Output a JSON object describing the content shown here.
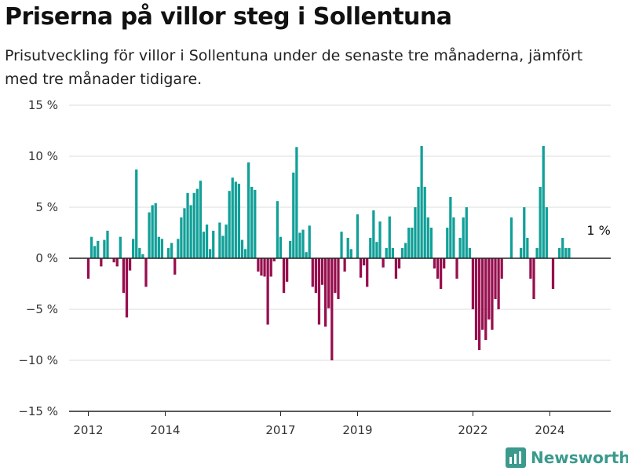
{
  "title": "Priserna på villor steg i Sollentuna",
  "subtitle": "Prisutveckling för villor i Sollentuna under de senaste tre månaderna, jämfört med tre månader tidigare.",
  "brand": {
    "name": "Newsworthy",
    "icon": "bar-chart-logo-icon"
  },
  "colors": {
    "positive": "#11a098",
    "negative": "#970f4e",
    "grid": "#dddddd",
    "zero_line": "#222222",
    "brand": "#3a9a8c"
  },
  "chart_data": {
    "type": "bar",
    "title": "Priserna på villor steg i Sollentuna",
    "xlabel": "",
    "ylabel": "",
    "ylim": [
      -15,
      15
    ],
    "y_ticks": [
      {
        "value": 15,
        "label": "15 %"
      },
      {
        "value": 10,
        "label": "10 %"
      },
      {
        "value": 5,
        "label": "5 %"
      },
      {
        "value": 0,
        "label": "0 %"
      },
      {
        "value": -5,
        "label": "−5 %"
      },
      {
        "value": -10,
        "label": "−10 %"
      },
      {
        "value": -15,
        "label": "−15 %"
      }
    ],
    "x_range": [
      "2011-07",
      "2025-08"
    ],
    "x_ticks": [
      {
        "value": "2012-01",
        "label": "2012"
      },
      {
        "value": "2014-01",
        "label": "2014"
      },
      {
        "value": "2017-01",
        "label": "2017"
      },
      {
        "value": "2019-01",
        "label": "2019"
      },
      {
        "value": "2022-01",
        "label": "2022"
      },
      {
        "value": "2024-01",
        "label": "2024"
      }
    ],
    "annotation": {
      "text": "1 %",
      "x": "2025-03"
    },
    "series": [
      {
        "start": "2012-01",
        "frequency": "monthly",
        "values": [
          -2.0,
          2.1,
          1.2,
          1.7,
          -0.8,
          1.8,
          2.7,
          0,
          -0.4,
          -0.8,
          2.1,
          -3.4,
          -5.8,
          -1.2,
          1.9,
          8.7,
          1.0,
          0.4,
          -2.8,
          4.5,
          5.2,
          5.4,
          2.1,
          1.9,
          0,
          1.0,
          1.5,
          -1.6,
          1.9,
          4.0,
          4.9,
          6.4,
          5.2,
          6.4,
          6.8,
          7.6,
          2.6,
          3.3,
          0.9,
          2.7,
          0,
          3.5,
          2.2,
          3.3,
          6.6,
          7.9,
          7.5,
          7.3,
          1.8,
          0.9,
          9.4,
          7.0,
          6.7,
          -1.3,
          -1.7,
          -1.8,
          -6.5,
          -1.8,
          -0.3,
          5.6,
          2.1,
          -3.4,
          -2.3,
          1.7,
          8.4,
          10.9,
          2.5,
          2.8,
          0.6,
          3.2,
          -2.8,
          -3.4,
          -6.5,
          -2.6,
          -6.7,
          -4.9,
          -10.0,
          -3.4,
          -4.0,
          2.6,
          -1.3,
          2.0,
          0.9,
          0,
          4.3,
          -1.9,
          -0.7,
          -2.8,
          2.0,
          4.7,
          1.6,
          3.6,
          -0.9,
          1.0,
          4.1,
          1.0,
          -2.0,
          -1.0,
          1.0,
          1.5,
          3.0,
          3.0,
          5.0,
          7.0,
          11.0,
          7.0,
          4.0,
          3.0,
          -1.0,
          -2.0,
          -3.0,
          -1.0,
          3.0,
          6.0,
          4.0,
          -2.0,
          2.0,
          4.0,
          5.0,
          1.0,
          -5.0,
          -8.0,
          -9.0,
          -7.0,
          -8.0,
          -6.0,
          -7.0,
          -4.0,
          -5.0,
          -2.0,
          0,
          0,
          4.0,
          0,
          0,
          1.0,
          5.0,
          2.0,
          -2.0,
          -4.0,
          1.0,
          7.0,
          11.0,
          5.0,
          0,
          -3.0,
          0,
          1.0,
          2.0,
          1.0,
          1.0
        ]
      }
    ]
  }
}
